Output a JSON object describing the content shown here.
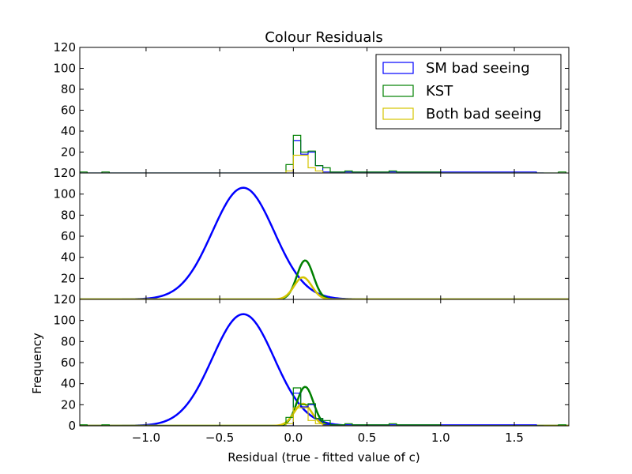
{
  "chart_data": {
    "type": "line",
    "title": "Colour Residuals",
    "xlabel": "Residual (true - fitted value of c)",
    "ylabel": "Frequency",
    "xlim": [
      -1.45,
      1.87
    ],
    "ylim": [
      0,
      120
    ],
    "x_ticks": [
      -1.0,
      -0.5,
      0.0,
      0.5,
      1.0,
      1.5
    ],
    "x_tick_labels": [
      "−1.0",
      "−0.5",
      "0.0",
      "0.5",
      "1.0",
      "1.5"
    ],
    "y_ticks": [
      0,
      20,
      40,
      60,
      80,
      100,
      120
    ],
    "y_tick_labels": [
      "0",
      "20",
      "40",
      "60",
      "80",
      "100",
      "120"
    ],
    "legend": {
      "location": "top-right of upper panel",
      "entries": [
        {
          "label": "SM bad seeing",
          "color": "#0000ff"
        },
        {
          "label": "KST",
          "color": "#008000"
        },
        {
          "label": "Both bad seeing",
          "color": "#d4c400"
        }
      ]
    },
    "histograms": [
      {
        "name": "SM bad seeing",
        "color": "#0000ff",
        "bin_width": 0.05,
        "bins": [
          [
            -1.45,
            0
          ],
          [
            0.0,
            31
          ],
          [
            0.05,
            18
          ],
          [
            0.1,
            20
          ],
          [
            0.15,
            7
          ],
          [
            0.2,
            1
          ],
          [
            0.4,
            1
          ],
          [
            0.45,
            1
          ],
          [
            0.6,
            1
          ],
          [
            0.65,
            1
          ],
          [
            0.7,
            1
          ],
          [
            0.75,
            1
          ],
          [
            0.8,
            1
          ],
          [
            1.6,
            1
          ],
          [
            1.65,
            0
          ]
        ]
      },
      {
        "name": "KST",
        "color": "#008000",
        "bin_width": 0.05,
        "bins": [
          [
            -1.45,
            1
          ],
          [
            -1.4,
            0
          ],
          [
            -1.3,
            1
          ],
          [
            -1.25,
            0
          ],
          [
            -0.05,
            8
          ],
          [
            0.0,
            36
          ],
          [
            0.05,
            20
          ],
          [
            0.1,
            21
          ],
          [
            0.15,
            7
          ],
          [
            0.2,
            5
          ],
          [
            0.25,
            1
          ],
          [
            0.35,
            2
          ],
          [
            0.4,
            1
          ],
          [
            0.6,
            1
          ],
          [
            0.65,
            2
          ],
          [
            0.7,
            1
          ],
          [
            0.75,
            1
          ],
          [
            0.8,
            1
          ],
          [
            0.95,
            1
          ],
          [
            1.0,
            0
          ],
          [
            1.8,
            1
          ]
        ]
      },
      {
        "name": "Both bad seeing",
        "color": "#d4c400",
        "bin_width": 0.05,
        "bins": [
          [
            -0.05,
            2
          ],
          [
            0.0,
            17
          ],
          [
            0.05,
            17
          ],
          [
            0.1,
            5
          ],
          [
            0.15,
            2
          ],
          [
            0.2,
            0
          ]
        ]
      }
    ],
    "curves": [
      {
        "name": "SM bad seeing",
        "color": "#0000ff",
        "mean": -0.34,
        "sigma": 0.21,
        "amplitude": 106
      },
      {
        "name": "KST",
        "color": "#008000",
        "mean": 0.08,
        "sigma": 0.056,
        "amplitude": 37
      },
      {
        "name": "Both bad seeing",
        "color": "#d4c400",
        "mean": 0.065,
        "sigma": 0.06,
        "amplitude": 21
      }
    ],
    "panels": [
      {
        "content": "histograms",
        "title": "Colour Residuals"
      },
      {
        "content": "gaussian fits"
      },
      {
        "content": "histograms + gaussian fits",
        "ylabel": "Frequency",
        "xlabel": "Residual (true - fitted value of c)"
      }
    ],
    "grid": false
  }
}
